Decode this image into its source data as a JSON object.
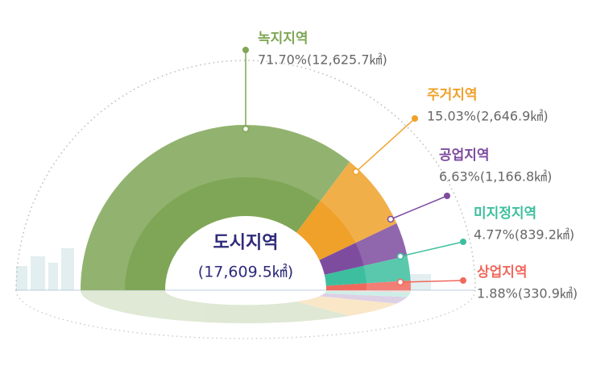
{
  "chart_data": {
    "type": "pie",
    "half": true,
    "center_title": "도시지역",
    "center_label": "(17,609.5㎢)",
    "categories": [
      "녹지지역",
      "주거지역",
      "공업지역",
      "미지정지역",
      "상업지역"
    ],
    "values": [
      71.7,
      15.03,
      6.63,
      4.77,
      1.88
    ],
    "value_labels": [
      "71.70%(12,625.7㎢)",
      "15.03%(2,646.9㎢)",
      "6.63%(1,166.8㎢)",
      "4.77%(839.2㎢)",
      "1.88%(330.9㎢)"
    ],
    "colors": [
      "#7fa656",
      "#efa12a",
      "#7d4c9f",
      "#3dbf9f",
      "#f0695d"
    ]
  }
}
